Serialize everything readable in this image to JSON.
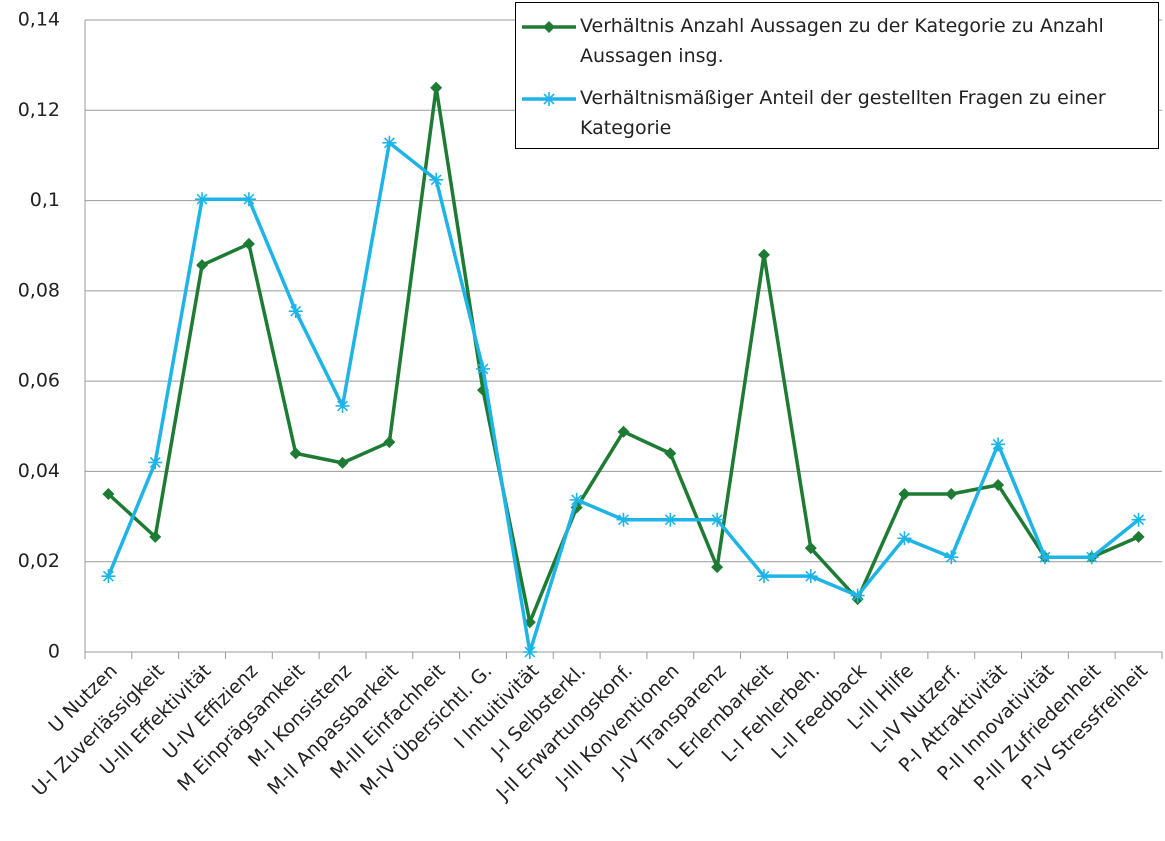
{
  "chart_data": {
    "type": "line",
    "categories": [
      "U Nutzen",
      "U-I Zuverlässigkeit",
      "U-III Effektivität",
      "U-IV Effizienz",
      "M Einprägsamkeit",
      "M-I Konsistenz",
      "M-II Anpassbarkeit",
      "M-III Einfachheit",
      "M-IV Übersichtl. G.",
      "I Intuitivität",
      "J-I Selbsterkl.",
      "J-II Erwartungskonf.",
      "J-III Konventionen",
      "J-IV Transparenz",
      "L Erlernbarkeit",
      "L-I Fehlerbeh.",
      "L-II Feedback",
      "L-III Hilfe",
      "L-IV Nutzerf.",
      "P-I Attraktivität",
      "P-II Innovativität",
      "P-III Zufriedenheit",
      "P-IV Stressfreiheit"
    ],
    "series": [
      {
        "name": "Verhältnis Anzahl Aussagen zu der Kategorie zu Anzahl Aussagen insg.",
        "color": "#1e7b34",
        "marker": "diamond",
        "values": [
          0.035,
          0.0255,
          0.0857,
          0.0904,
          0.044,
          0.0419,
          0.0465,
          0.125,
          0.058,
          0.0066,
          0.032,
          0.0488,
          0.044,
          0.0188,
          0.088,
          0.023,
          0.0117,
          0.035,
          0.035,
          0.037,
          0.021,
          0.021,
          0.0255
        ]
      },
      {
        "name": "Verhältnismäßiger Anteil der gestellten Fragen zu einer Kategorie",
        "color": "#1fb4e8",
        "marker": "star",
        "values": [
          0.0168,
          0.042,
          0.1003,
          0.1003,
          0.0755,
          0.0545,
          0.1128,
          0.1046,
          0.0627,
          0,
          0.0337,
          0.0293,
          0.0293,
          0.0293,
          0.0168,
          0.0168,
          0.0125,
          0.0252,
          0.021,
          0.046,
          0.021,
          0.021,
          0.0293
        ]
      }
    ],
    "ylim": [
      0,
      0.14
    ],
    "yticks": [
      0,
      {
        "value": 0.02,
        "label": "0,02"
      },
      {
        "value": 0.04,
        "label": "0,04"
      },
      {
        "value": 0.06,
        "label": "0,06"
      },
      {
        "value": 0.08,
        "label": "0,08"
      },
      {
        "value": 0.1,
        "label": "0,1"
      },
      {
        "value": 0.12,
        "label": "0,12"
      },
      {
        "value": 0.14,
        "label": "0,14"
      }
    ],
    "grid": true,
    "legend": "top-right"
  }
}
